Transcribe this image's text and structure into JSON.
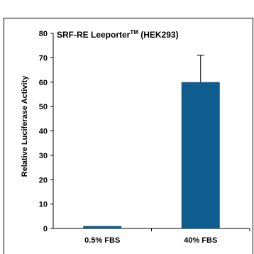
{
  "chart_data": {
    "type": "bar",
    "title": "SRF-RE Leeporter",
    "title_superscript": "TM",
    "title_suffix": " (HEK293)",
    "ylabel": "Relative Luciferase Activity",
    "categories": [
      "0.5% FBS",
      "40% FBS"
    ],
    "values": [
      1,
      60
    ],
    "error": [
      0.3,
      11
    ],
    "ylim": [
      0,
      80
    ],
    "yticks": [
      "0",
      "10",
      "20",
      "30",
      "40",
      "50",
      "60",
      "70",
      "80"
    ],
    "bar_color": "#0f5c8e",
    "grid": false,
    "legend": "none"
  }
}
